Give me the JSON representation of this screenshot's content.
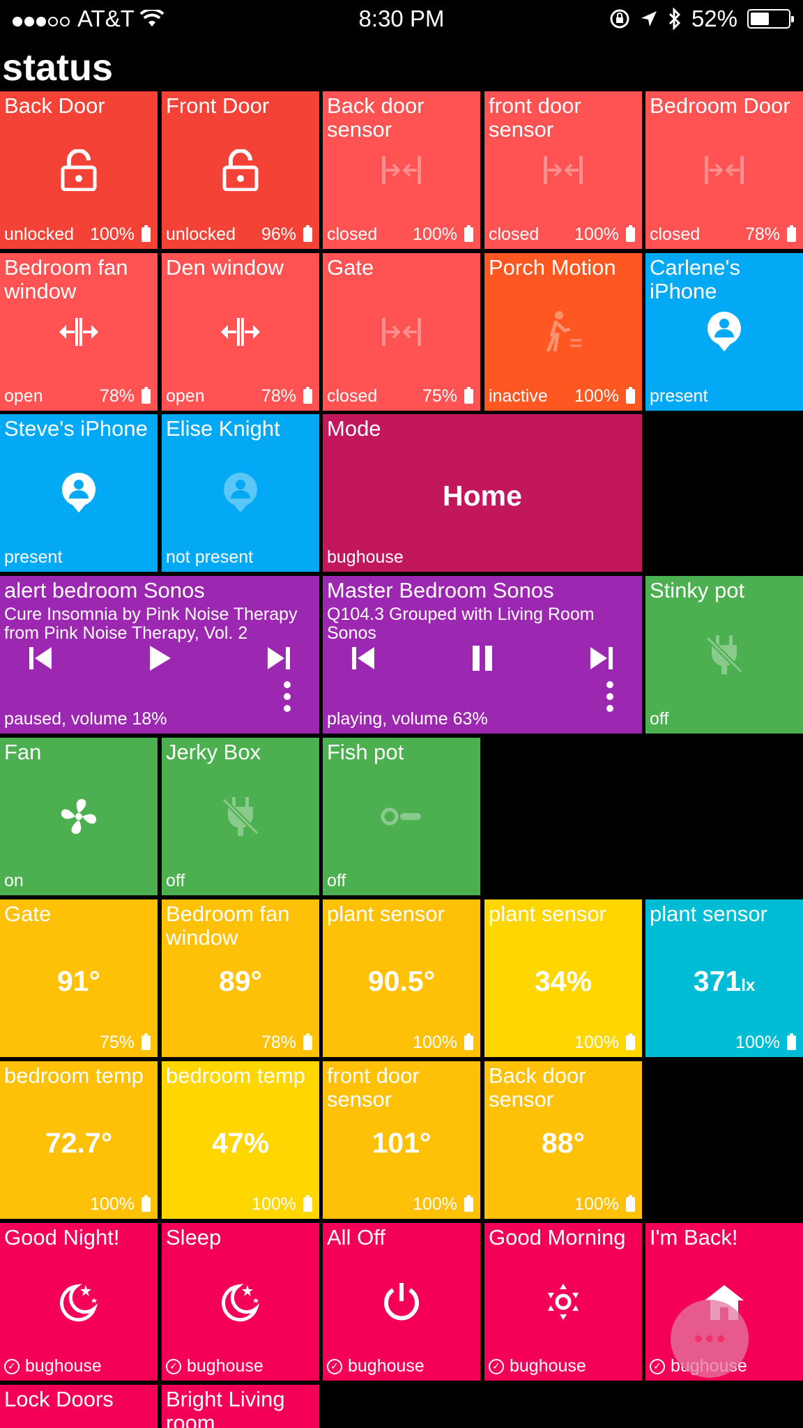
{
  "statusbar": {
    "carrier": "AT&T",
    "time": "8:30 PM",
    "battery": "52%"
  },
  "page_title": "status",
  "colors": {
    "red": "#F44336",
    "red_light": "#FF5252",
    "orange": "#FF5722",
    "blue": "#03A9F4",
    "magenta": "#C2185B",
    "purple": "#9C27B0",
    "green": "#4CAF50",
    "amber": "#FFC107",
    "yellow": "#FFD600",
    "cyan": "#00BCD4",
    "pink": "#F50057"
  },
  "tiles": {
    "back_door": {
      "title": "Back Door",
      "status": "unlocked",
      "battery": "100%",
      "icon": "lock-open-icon"
    },
    "front_door": {
      "title": "Front Door",
      "status": "unlocked",
      "battery": "96%",
      "icon": "lock-open-icon"
    },
    "back_door_sensor": {
      "title": "Back door sensor",
      "status": "closed",
      "battery": "100%",
      "icon": "contact-closed-icon"
    },
    "front_door_sensor": {
      "title": "front door sensor",
      "status": "closed",
      "battery": "100%",
      "icon": "contact-closed-icon"
    },
    "bedroom_door": {
      "title": "Bedroom Door",
      "status": "closed",
      "battery": "78%",
      "icon": "contact-closed-icon"
    },
    "bedroom_fan_window": {
      "title": "Bedroom fan window",
      "status": "open",
      "battery": "78%",
      "icon": "contact-open-icon"
    },
    "den_window": {
      "title": "Den window",
      "status": "open",
      "battery": "78%",
      "icon": "contact-open-icon"
    },
    "gate_contact": {
      "title": "Gate",
      "status": "closed",
      "battery": "75%",
      "icon": "contact-closed-icon"
    },
    "porch_motion": {
      "title": "Porch Motion",
      "status": "inactive",
      "battery": "100%",
      "icon": "motion-icon"
    },
    "carlene_iphone": {
      "title": "Carlene's iPhone",
      "status": "present",
      "icon": "presence-icon"
    },
    "steve_iphone": {
      "title": "Steve's iPhone",
      "status": "present",
      "icon": "presence-icon"
    },
    "elise_knight": {
      "title": "Elise Knight",
      "status": "not present",
      "icon": "presence-icon"
    },
    "mode": {
      "title": "Mode",
      "value": "Home",
      "status": "bughouse"
    },
    "alert_sonos": {
      "title": "alert bedroom Sonos",
      "subtitle": "Cure Insomnia by Pink Noise Therapy from Pink Noise Therapy, Vol. 2",
      "status": "paused, volume 18%"
    },
    "master_sonos": {
      "title": "Master Bedroom Sonos",
      "subtitle": "Q104.3 Grouped with Living Room Sonos",
      "status": "playing, volume 63%"
    },
    "stinky_pot": {
      "title": "Stinky pot",
      "status": "off",
      "icon": "outlet-off-icon"
    },
    "fan": {
      "title": "Fan",
      "status": "on",
      "icon": "fan-icon"
    },
    "jerky_box": {
      "title": "Jerky Box",
      "status": "off",
      "icon": "outlet-off-icon"
    },
    "fish_pot": {
      "title": "Fish pot",
      "status": "off",
      "icon": "switch-off-icon"
    },
    "gate_temp": {
      "title": "Gate",
      "value": "91°",
      "battery": "75%"
    },
    "bedroom_fan_window_temp": {
      "title": "Bedroom fan window",
      "value": "89°",
      "battery": "78%"
    },
    "plant_sensor_temp": {
      "title": "plant sensor",
      "value": "90.5°",
      "battery": "100%"
    },
    "plant_sensor_humidity": {
      "title": "plant sensor",
      "value": "34%",
      "battery": "100%"
    },
    "plant_sensor_lux": {
      "title": "plant sensor",
      "value": "371",
      "unit": "lx",
      "battery": "100%"
    },
    "bedroom_temp": {
      "title": "bedroom temp",
      "value": "72.7°",
      "battery": "100%"
    },
    "bedroom_humidity": {
      "title": "bedroom temp",
      "value": "47%",
      "battery": "100%"
    },
    "front_door_sensor_temp": {
      "title": "front door sensor",
      "value": "101°",
      "battery": "100%"
    },
    "back_door_sensor_temp": {
      "title": "Back door sensor",
      "value": "88°",
      "battery": "100%"
    },
    "good_night": {
      "title": "Good Night!",
      "location": "bughouse",
      "icon": "moon-stars-icon"
    },
    "sleep": {
      "title": "Sleep",
      "location": "bughouse",
      "icon": "moon-stars-icon"
    },
    "all_off": {
      "title": "All Off",
      "location": "bughouse",
      "icon": "power-icon"
    },
    "good_morning": {
      "title": "Good Morning",
      "location": "bughouse",
      "icon": "sun-icon"
    },
    "im_back": {
      "title": "I'm Back!",
      "location": "bughouse",
      "icon": "home-icon"
    },
    "lock_doors": {
      "title": "Lock Doors"
    },
    "bright_living_room": {
      "title": "Bright Living room"
    }
  }
}
